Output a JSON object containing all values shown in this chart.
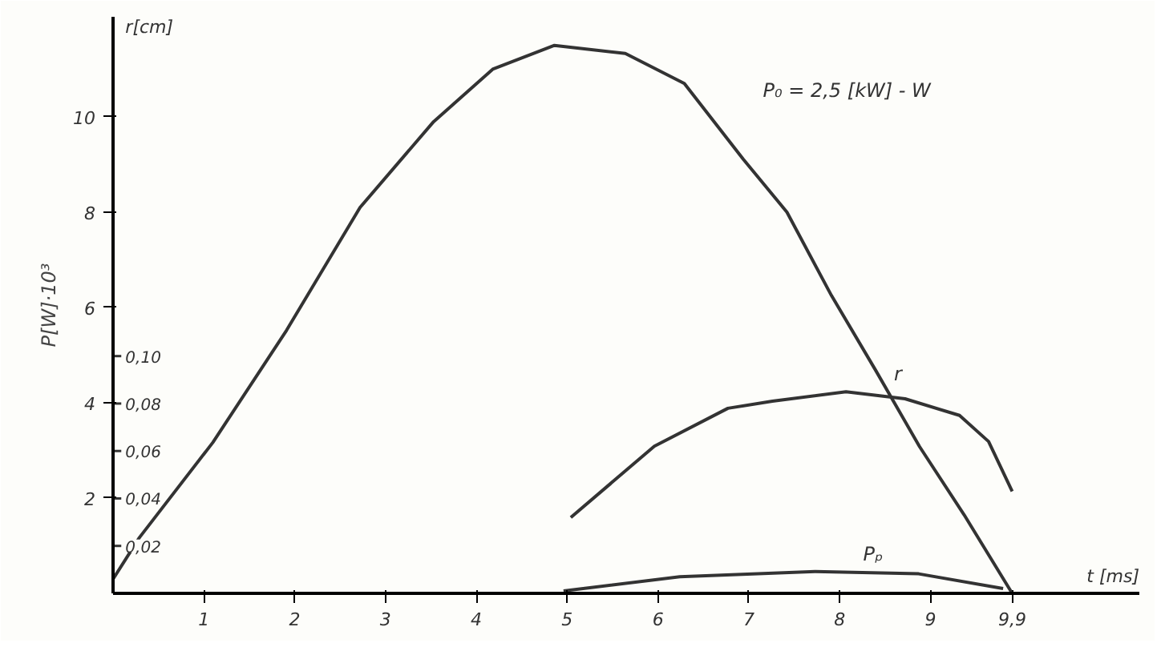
{
  "chart_data": {
    "type": "line",
    "xlabel": "t [ms]",
    "ylabel": "P[W]·10³",
    "y2label": "r[cm]",
    "xlim": [
      0,
      11.3
    ],
    "ylim": [
      0,
      12.1
    ],
    "y2lim": [
      0,
      0.243
    ],
    "xticks": [
      1,
      2,
      3,
      4,
      5,
      6,
      7,
      8,
      9,
      {
        "value": 9.9,
        "label": "9,9"
      }
    ],
    "yticks": [
      2,
      4,
      6,
      8,
      10
    ],
    "y2ticks": [
      {
        "value": 0.02,
        "label": "0,02"
      },
      {
        "value": 0.04,
        "label": "0,04"
      },
      {
        "value": 0.06,
        "label": "0,06"
      },
      {
        "value": 0.08,
        "label": "0,08"
      },
      {
        "value": 0.1,
        "label": "0,10"
      }
    ],
    "grid": false,
    "marker": "none",
    "line_style": "solid",
    "series": [
      {
        "name": "P₀ = 2,5 [kW] - W",
        "color": "#333333",
        "x": [
          0,
          0.29,
          1.1,
          1.91,
          2.72,
          3.53,
          4.18,
          4.86,
          5.64,
          6.29,
          6.94,
          7.42,
          7.91,
          8.4,
          8.88,
          9.37,
          9.9
        ],
        "values": [
          0.3,
          1.17,
          3.17,
          5.52,
          8.1,
          9.9,
          11.0,
          11.5,
          11.33,
          10.7,
          9.11,
          8.0,
          6.25,
          4.67,
          3.08,
          1.65,
          0
        ]
      },
      {
        "name": "r",
        "color": "#333333",
        "axis": "y2",
        "x": [
          5.04,
          5.96,
          6.77,
          7.26,
          8.07,
          8.72,
          9.32,
          9.64,
          9.9
        ],
        "values": [
          0.032,
          0.062,
          0.078,
          0.081,
          0.085,
          0.082,
          0.075,
          0.064,
          0.043
        ]
      },
      {
        "name": "Pₚ",
        "color": "#333333",
        "x": [
          4.96,
          6.24,
          7.73,
          8.87,
          9.8
        ],
        "values": [
          0.05,
          0.35,
          0.46,
          0.41,
          0.1
        ]
      }
    ]
  }
}
